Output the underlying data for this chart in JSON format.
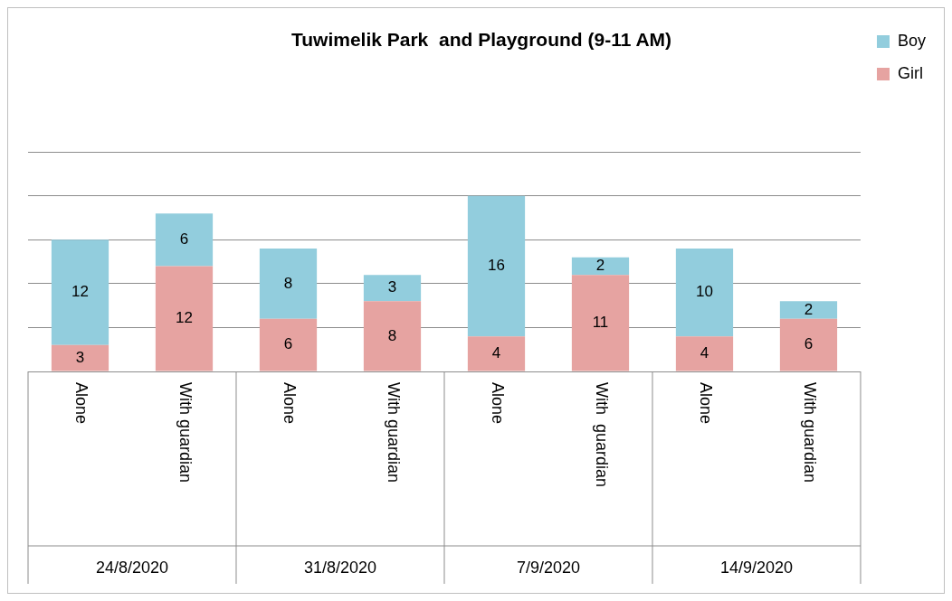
{
  "chart_data": {
    "type": "bar",
    "title": "Tuwimelik Park  and Playground (9-11 AM)",
    "categories": [
      "Alone",
      "With guardian",
      "Alone",
      "With guardian",
      "Alone",
      "With  guardian",
      "Alone",
      "With guardian"
    ],
    "annotations": [
      "24/8/2020",
      "31/8/2020",
      "7/9/2020",
      "14/9/2020"
    ],
    "stacked": true,
    "series": [
      {
        "name": "Girl",
        "color": "#e6a3a1",
        "values": [
          3,
          12,
          6,
          8,
          4,
          11,
          4,
          6
        ]
      },
      {
        "name": "Boy",
        "color": "#92cddd",
        "values": [
          12,
          6,
          8,
          3,
          16,
          2,
          10,
          2
        ]
      }
    ],
    "ylim": [
      0,
      25
    ],
    "tick_labels": "x",
    "grid": "y",
    "legend": "top right",
    "data_labels": true
  }
}
